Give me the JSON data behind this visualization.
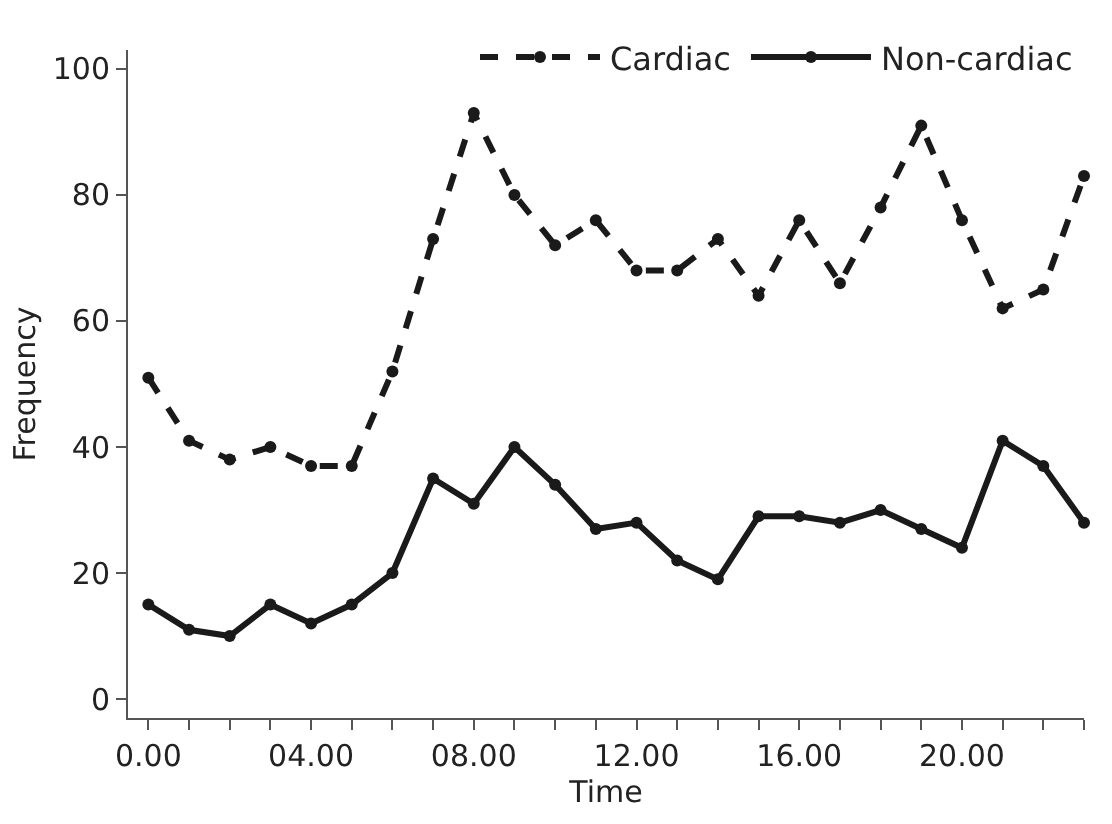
{
  "chart_data": {
    "type": "line",
    "xlabel": "Time",
    "ylabel": "Frequency",
    "x": [
      0,
      1,
      2,
      3,
      4,
      5,
      6,
      7,
      8,
      9,
      10,
      11,
      12,
      13,
      14,
      15,
      16,
      17,
      18,
      19,
      20,
      21,
      22,
      23
    ],
    "series": [
      {
        "name": "Cardiac",
        "color": "#1a1a1a",
        "line_style": "dashed",
        "values": [
          51,
          41,
          38,
          40,
          37,
          37,
          52,
          73,
          93,
          80,
          72,
          76,
          68,
          68,
          73,
          64,
          76,
          66,
          78,
          91,
          76,
          62,
          65,
          83
        ]
      },
      {
        "name": "Non-cardiac",
        "color": "#1a1a1a",
        "line_style": "solid",
        "values": [
          15,
          11,
          10,
          15,
          12,
          15,
          20,
          35,
          31,
          40,
          34,
          27,
          28,
          22,
          19,
          29,
          29,
          28,
          30,
          27,
          24,
          41,
          37,
          28
        ]
      }
    ],
    "xlim": [
      -0.5,
      23
    ],
    "ylim": [
      -3,
      103
    ],
    "xticks": [
      {
        "value": 0,
        "label": "0.00"
      },
      {
        "value": 1,
        "label": null
      },
      {
        "value": 2,
        "label": null
      },
      {
        "value": 3,
        "label": null
      },
      {
        "value": 4,
        "label": "04.00"
      },
      {
        "value": 5,
        "label": null
      },
      {
        "value": 6,
        "label": null
      },
      {
        "value": 7,
        "label": null
      },
      {
        "value": 8,
        "label": "08.00"
      },
      {
        "value": 9,
        "label": null
      },
      {
        "value": 10,
        "label": null
      },
      {
        "value": 11,
        "label": null
      },
      {
        "value": 12,
        "label": "12.00"
      },
      {
        "value": 13,
        "label": null
      },
      {
        "value": 14,
        "label": null
      },
      {
        "value": 15,
        "label": null
      },
      {
        "value": 16,
        "label": "16.00"
      },
      {
        "value": 17,
        "label": null
      },
      {
        "value": 18,
        "label": null
      },
      {
        "value": 19,
        "label": null
      },
      {
        "value": 20,
        "label": "20.00"
      },
      {
        "value": 21,
        "label": null
      },
      {
        "value": 22,
        "label": null
      },
      {
        "value": 23,
        "label": null
      }
    ],
    "yticks": [
      0,
      20,
      40,
      60,
      80,
      100
    ],
    "legend": "top right",
    "marker": "circle"
  }
}
